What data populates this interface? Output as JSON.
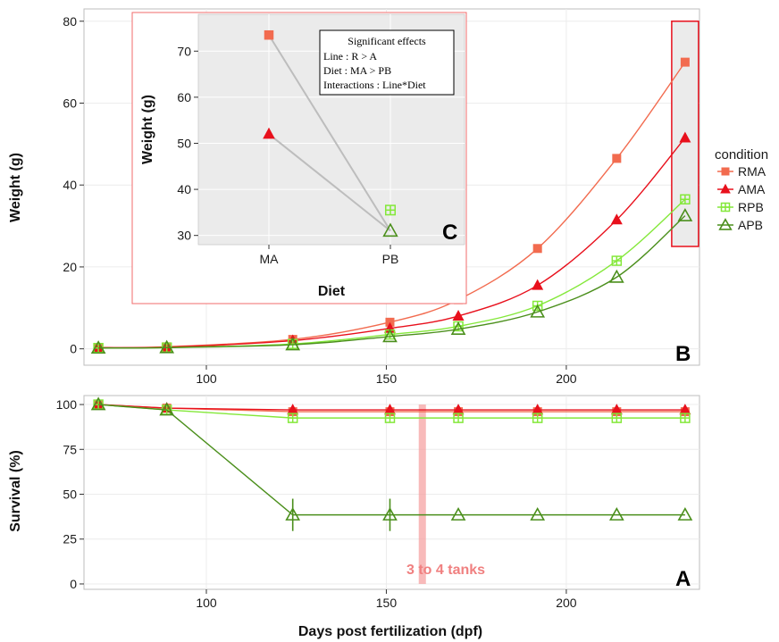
{
  "colors": {
    "RMA": "#f26b4f",
    "AMA": "#e8101c",
    "RPB": "#84e83a",
    "APB": "#4b8f1c",
    "panel_bg": "#ffffff",
    "grid": "#ececec",
    "inset_bg": "#ebebeb",
    "highlight_box": "#e8101c",
    "tanks_band": "#f6a3a3",
    "inset_line": "#bdbdbd"
  },
  "chart_data": [
    {
      "id": "B",
      "type": "line",
      "panel_label": "B",
      "ylabel": "Weight (g)",
      "xlim": [
        66,
        237
      ],
      "ylim": [
        -4,
        83
      ],
      "x_ticks": [
        100,
        150,
        200
      ],
      "y_ticks": [
        0,
        20,
        40,
        60,
        80
      ],
      "grid": true,
      "x": [
        70,
        89,
        124,
        151,
        170,
        192,
        214,
        233
      ],
      "series": [
        {
          "name": "RMA",
          "marker": "square",
          "values": [
            0.3,
            0.5,
            2.3,
            6.5,
            12.0,
            24.5,
            46.5,
            70.0
          ]
        },
        {
          "name": "AMA",
          "marker": "triangle",
          "values": [
            0.3,
            0.4,
            2.0,
            5.0,
            8.0,
            15.5,
            31.5,
            51.5
          ]
        },
        {
          "name": "RPB",
          "marker": "crossed-square",
          "values": [
            0.2,
            0.3,
            1.2,
            3.5,
            5.5,
            10.5,
            21.5,
            36.5
          ]
        },
        {
          "name": "APB",
          "marker": "open-triangle",
          "values": [
            0.2,
            0.3,
            1.0,
            3.0,
            4.8,
            9.0,
            17.5,
            32.5
          ]
        }
      ],
      "highlight_x": 233,
      "highlight_ylim": [
        25,
        80
      ]
    },
    {
      "id": "A",
      "type": "line",
      "panel_label": "A",
      "ylabel": "Survival (%)",
      "xlabel": "Days post fertilization (dpf)",
      "xlim": [
        66,
        237
      ],
      "ylim": [
        -3,
        105
      ],
      "x_ticks": [
        100,
        150,
        200
      ],
      "y_ticks": [
        0,
        25,
        50,
        75,
        100
      ],
      "grid": true,
      "x": [
        70,
        89,
        124,
        151,
        170,
        192,
        214,
        233
      ],
      "series": [
        {
          "name": "RMA",
          "marker": "square",
          "values": [
            100,
            98,
            96,
            96,
            96,
            96,
            96,
            96
          ]
        },
        {
          "name": "AMA",
          "marker": "triangle",
          "values": [
            100,
            98,
            97,
            97,
            97,
            97,
            97,
            97
          ]
        },
        {
          "name": "RPB",
          "marker": "crossed-square",
          "values": [
            100,
            97,
            92.5,
            92.5,
            92.5,
            92.5,
            92.5,
            92.5
          ]
        },
        {
          "name": "APB",
          "marker": "open-triangle",
          "values": [
            100,
            97,
            38.5,
            38.5,
            38.5,
            38.5,
            38.5,
            38.5
          ],
          "error": [
            0,
            0,
            9,
            9,
            0,
            0,
            0,
            0
          ]
        }
      ],
      "band_x": [
        159,
        161
      ],
      "annotation": "3 to 4 tanks"
    },
    {
      "id": "C",
      "type": "line",
      "panel_label": "C",
      "ylabel": "Weight (g)",
      "xlabel": "Diet",
      "categories": [
        "MA",
        "PB"
      ],
      "ylim": [
        28,
        78
      ],
      "y_ticks": [
        30,
        40,
        50,
        60,
        70
      ],
      "series": [
        {
          "name": "RMA",
          "marker": "square",
          "values": [
            73.5,
            null
          ]
        },
        {
          "name": "AMA",
          "marker": "triangle",
          "values": [
            52.0,
            null
          ]
        },
        {
          "name": "RPB",
          "marker": "crossed-square",
          "values": [
            null,
            35.5
          ]
        },
        {
          "name": "APB",
          "marker": "open-triangle",
          "values": [
            null,
            31.0
          ]
        }
      ],
      "connections": [
        {
          "from": {
            "cat": "MA",
            "value": 73.5
          },
          "to": {
            "cat": "PB",
            "value": 31.0
          }
        },
        {
          "from": {
            "cat": "MA",
            "value": 52.0
          },
          "to": {
            "cat": "PB",
            "value": 31.0
          }
        }
      ],
      "annotation_box": {
        "title": "Significant effects",
        "lines": [
          "Line : R > A",
          "Diet : MA > PB",
          "Interactions : Line*Diet"
        ]
      }
    }
  ],
  "legend": {
    "title": "condition",
    "items": [
      "RMA",
      "AMA",
      "RPB",
      "APB"
    ]
  }
}
